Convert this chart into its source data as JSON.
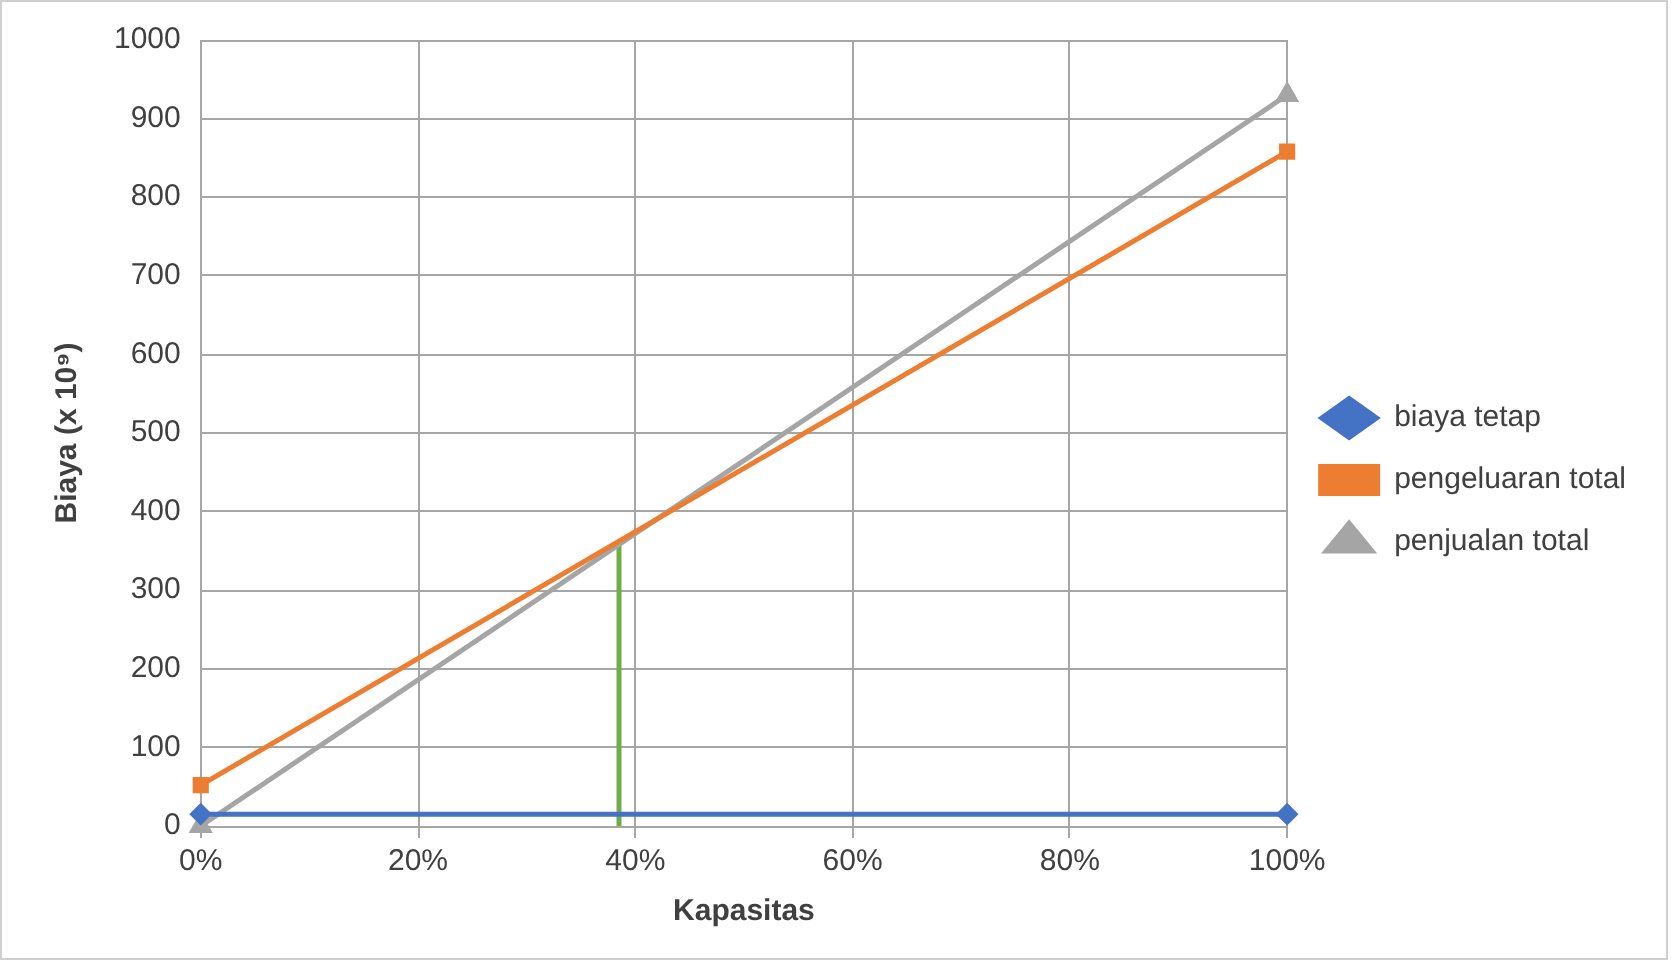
{
  "chart_data": {
    "type": "line",
    "xlabel": "Kapasitas",
    "ylabel": "Biaya (x 10⁹)",
    "x": [
      0,
      100
    ],
    "series": [
      {
        "name": "biaya tetap",
        "color": "#4472c4",
        "values": [
          15,
          15
        ],
        "marker": "diamond"
      },
      {
        "name": "pengeluaran total",
        "color": "#ed7d31",
        "values": [
          52,
          858
        ],
        "marker": "square"
      },
      {
        "name": "penjualan total",
        "color": "#a5a5a5",
        "values": [
          0,
          930
        ],
        "marker": "triangle"
      },
      {
        "color": "#70ad47",
        "x": [
          38.5,
          38.5
        ],
        "values": [
          0,
          362
        ],
        "marker": "none"
      }
    ],
    "xlim": [
      0,
      100
    ],
    "xticks": [
      {
        "value": 0,
        "label": "0%"
      },
      {
        "value": 20,
        "label": "20%"
      },
      {
        "value": 40,
        "label": "40%"
      },
      {
        "value": 60,
        "label": "60%"
      },
      {
        "value": 80,
        "label": "80%"
      },
      {
        "value": 100,
        "label": "100%"
      }
    ],
    "ylim": [
      0,
      1000
    ],
    "yticks": [
      0,
      100,
      200,
      300,
      400,
      500,
      600,
      700,
      800,
      900,
      1000
    ],
    "grid": true,
    "legend": "right",
    "line_style": "solid"
  }
}
